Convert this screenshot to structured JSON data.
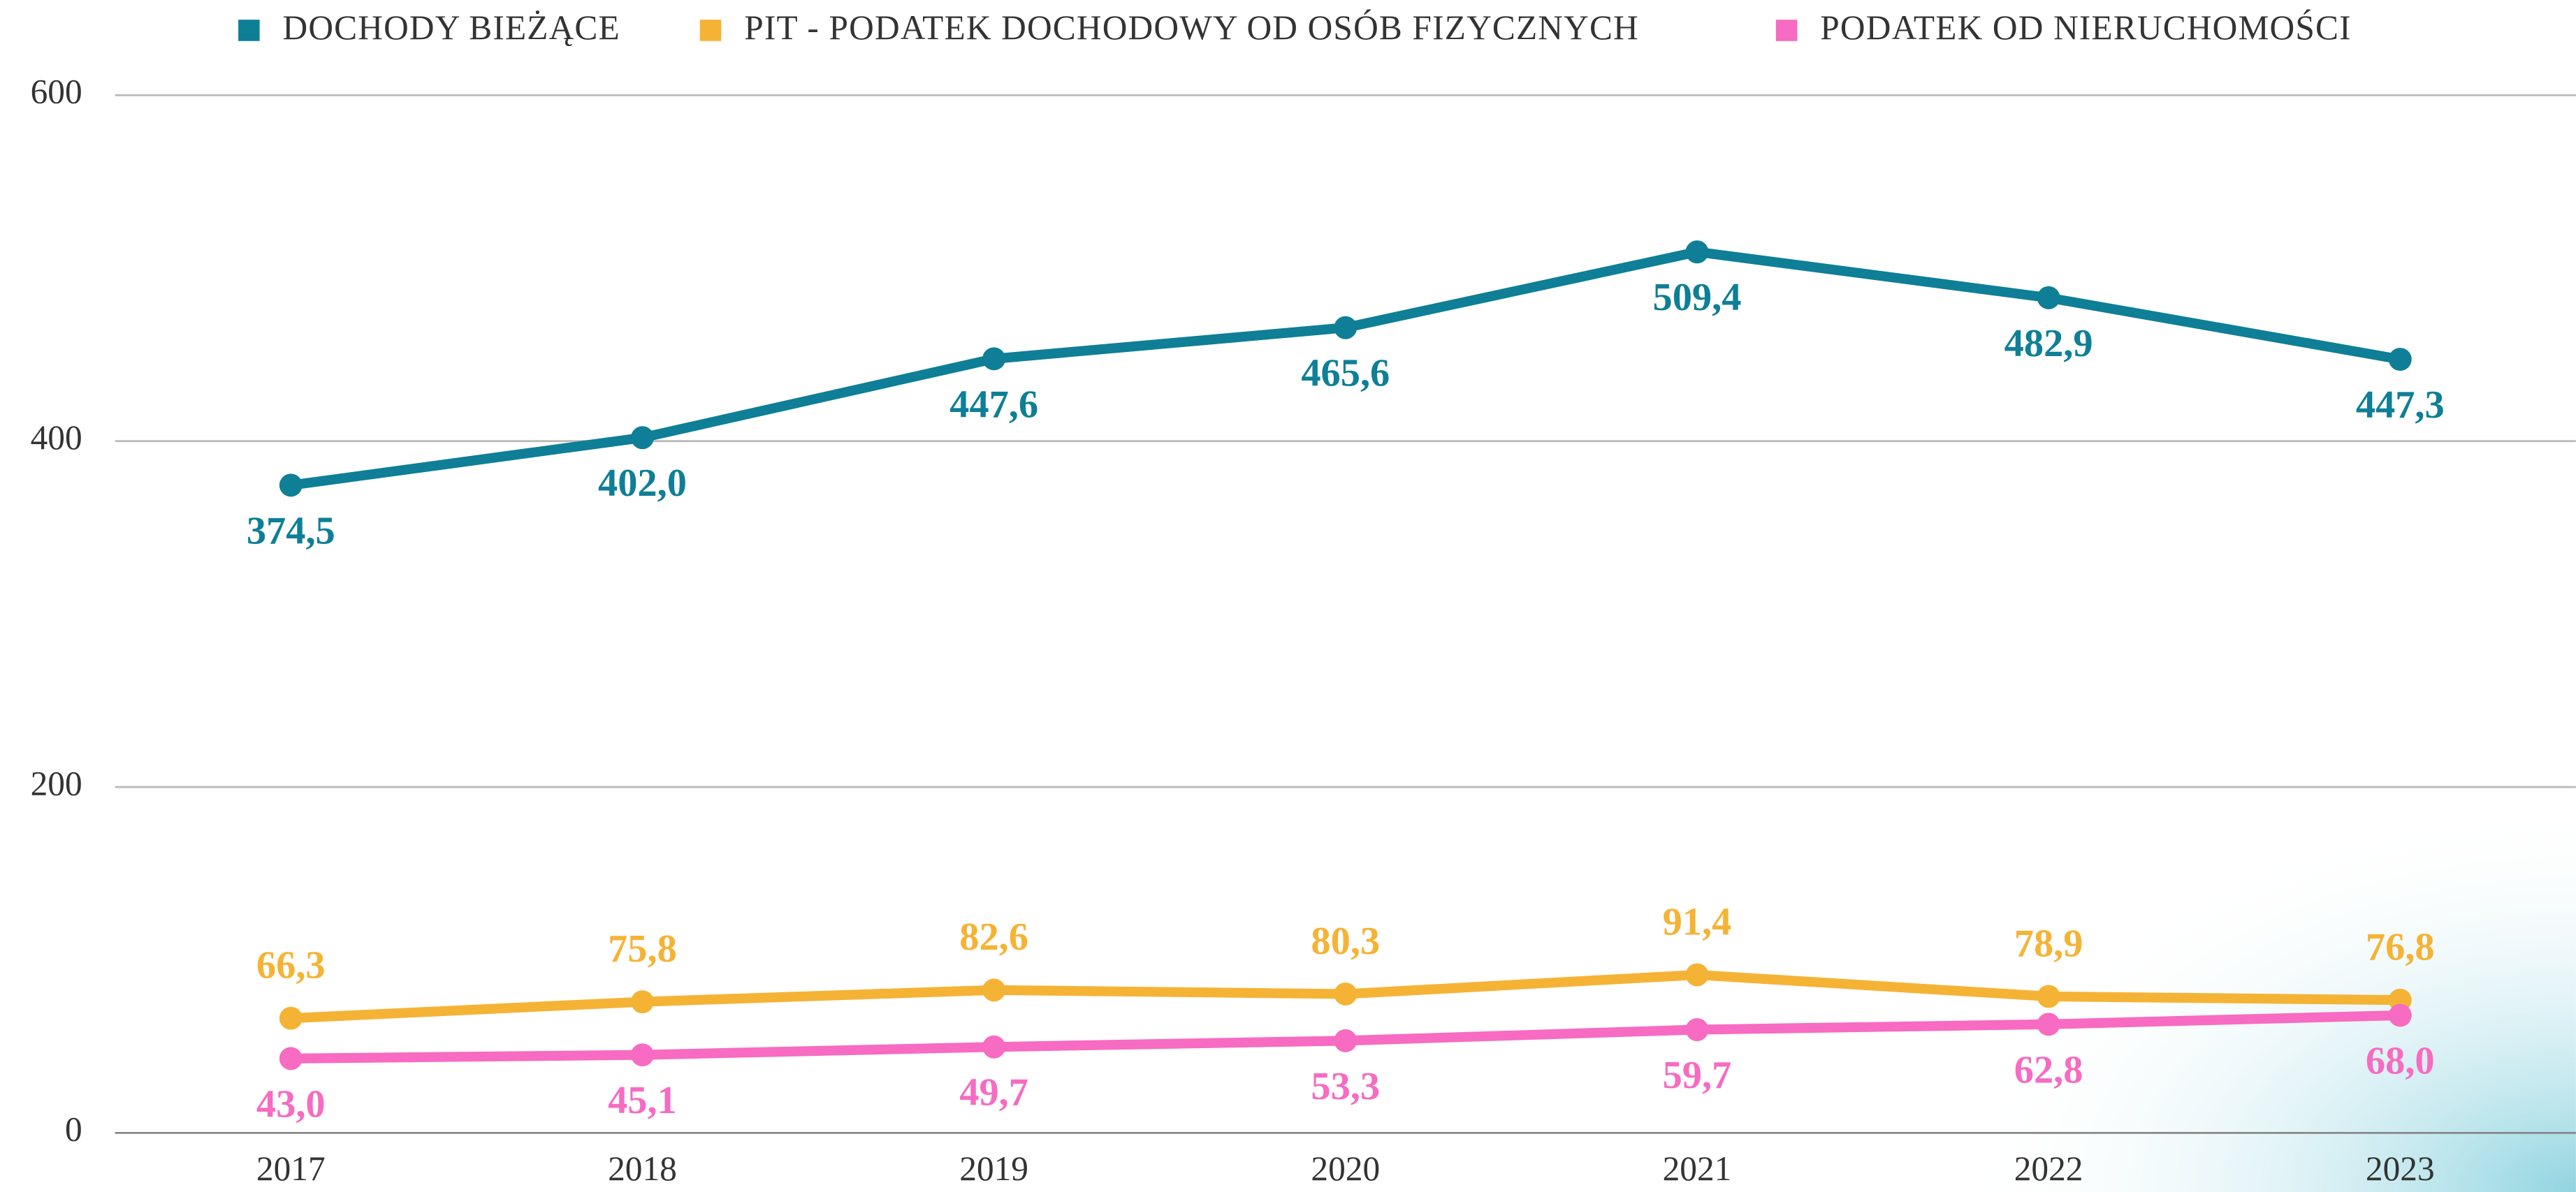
{
  "chart_data": {
    "type": "line",
    "categories": [
      "2017",
      "2018",
      "2019",
      "2020",
      "2021",
      "2022",
      "2023"
    ],
    "series": [
      {
        "name": "DOCHODY BIEŻĄCE",
        "color": "#0e7f96",
        "values": [
          374.5,
          402.0,
          447.6,
          465.6,
          509.4,
          482.9,
          447.3
        ],
        "value_labels": [
          "374,5",
          "402,0",
          "447,6",
          "465,6",
          "509,4",
          "482,9",
          "447,3"
        ]
      },
      {
        "name": "PIT -  PODATEK DOCHODOWY OD OSÓB FIZYCZNYCH",
        "color": "#f5b335",
        "values": [
          66.3,
          75.8,
          82.6,
          80.3,
          91.4,
          78.9,
          76.8
        ],
        "value_labels": [
          "66,3",
          "75,8",
          "82,6",
          "80,3",
          "91,4",
          "78,9",
          "76,8"
        ]
      },
      {
        "name": "PODATEK OD NIERUCHOMOŚCI",
        "color": "#f76bc2",
        "values": [
          43.0,
          45.1,
          49.7,
          53.3,
          59.7,
          62.8,
          68.0
        ],
        "value_labels": [
          "43,0",
          "45,1",
          "49,7",
          "53,3",
          "59,7",
          "62,8",
          "68,0"
        ]
      }
    ],
    "ylim": [
      0,
      600
    ],
    "yticks": [
      0,
      200,
      400,
      600
    ],
    "grid": true,
    "legend": "top"
  }
}
